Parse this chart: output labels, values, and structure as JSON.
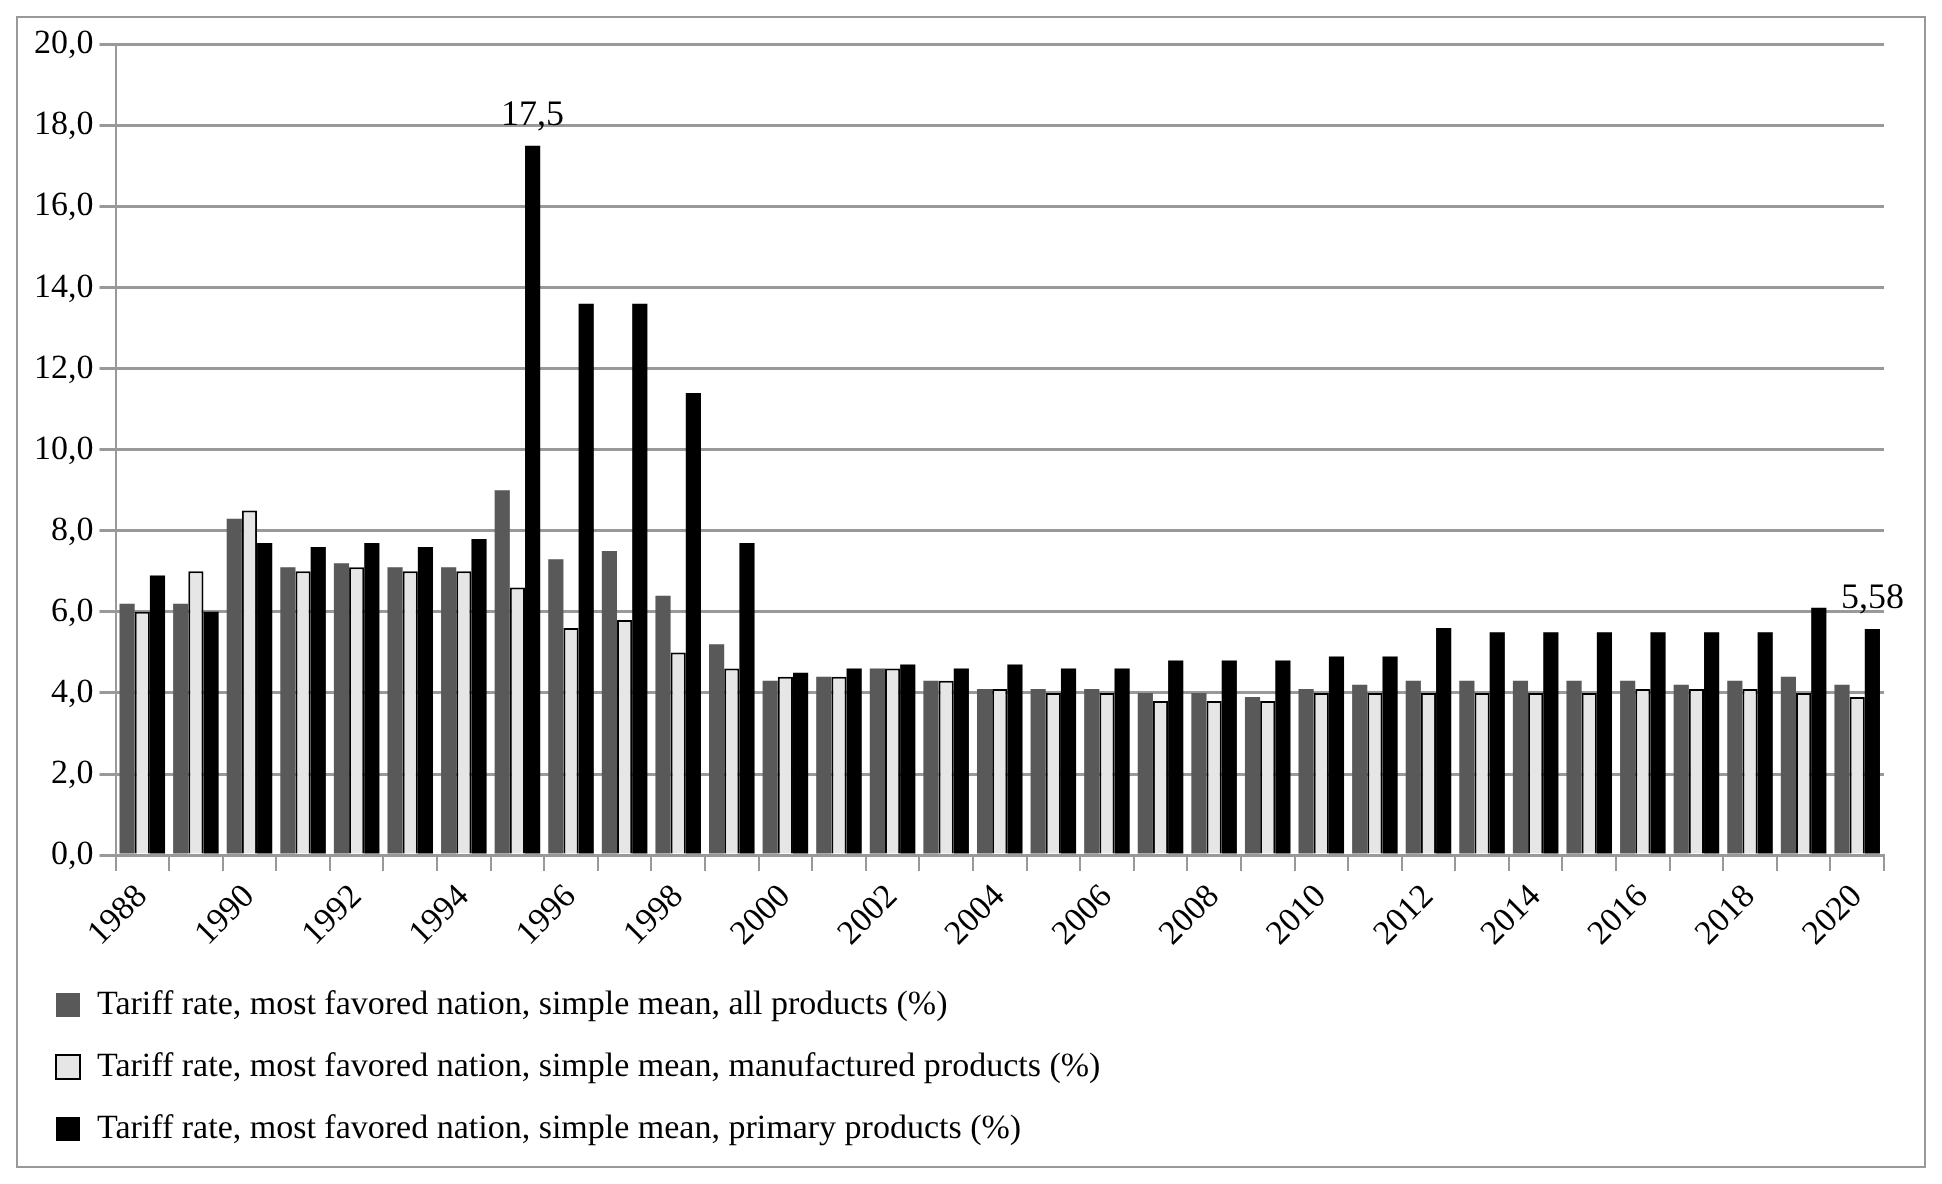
{
  "chart_data": {
    "type": "bar",
    "categories": [
      "1988",
      null,
      "1990",
      null,
      "1992",
      null,
      "1994",
      null,
      "1996",
      null,
      "1998",
      null,
      "2000",
      null,
      "2002",
      null,
      "2004",
      null,
      "2006",
      null,
      "2008",
      null,
      "2010",
      null,
      "2012",
      null,
      "2014",
      null,
      "2016",
      null,
      "2018",
      null,
      "2020"
    ],
    "series": [
      {
        "name": "Tariff rate, most favored nation, simple mean, all products (%)",
        "color": "#595959",
        "values": [
          6.2,
          6.2,
          8.3,
          7.1,
          7.2,
          7.1,
          7.1,
          9.0,
          7.3,
          7.5,
          6.4,
          5.2,
          4.3,
          4.4,
          4.6,
          4.3,
          4.1,
          4.1,
          4.1,
          4.0,
          4.0,
          3.9,
          4.1,
          4.2,
          4.3,
          4.3,
          4.3,
          4.3,
          4.3,
          4.2,
          4.3,
          4.4,
          4.2
        ]
      },
      {
        "name": "Tariff rate, most favored nation, simple mean, manufactured products (%)",
        "color": "#e6e6e6",
        "values": [
          6.0,
          7.0,
          8.5,
          7.0,
          7.1,
          7.0,
          7.0,
          6.6,
          5.6,
          5.8,
          5.0,
          4.6,
          4.4,
          4.4,
          4.6,
          4.3,
          4.1,
          4.0,
          4.0,
          3.8,
          3.8,
          3.8,
          4.0,
          4.0,
          4.0,
          4.0,
          4.0,
          4.0,
          4.1,
          4.1,
          4.1,
          4.0,
          3.9
        ]
      },
      {
        "name": "Tariff rate, most favored nation, simple mean, primary products (%)",
        "color": "#000000",
        "values": [
          6.9,
          6.0,
          7.7,
          7.6,
          7.7,
          7.6,
          7.8,
          17.5,
          13.6,
          13.6,
          11.4,
          7.7,
          4.5,
          4.6,
          4.7,
          4.6,
          4.7,
          4.6,
          4.6,
          4.8,
          4.8,
          4.8,
          4.9,
          4.9,
          5.6,
          5.5,
          5.5,
          5.5,
          5.5,
          5.5,
          5.5,
          6.1,
          5.58
        ],
        "value_labels": [
          null,
          null,
          null,
          null,
          null,
          null,
          null,
          "17,5",
          null,
          null,
          null,
          null,
          null,
          null,
          null,
          null,
          null,
          null,
          null,
          null,
          null,
          null,
          null,
          null,
          null,
          null,
          null,
          null,
          null,
          null,
          null,
          null,
          "5,58"
        ]
      }
    ],
    "ylim": [
      0,
      20
    ],
    "yticks": [
      {
        "value": 0,
        "label": "0,0"
      },
      {
        "value": 2,
        "label": "2,0"
      },
      {
        "value": 4,
        "label": "4,0"
      },
      {
        "value": 6,
        "label": "6,0"
      },
      {
        "value": 8,
        "label": "8,0"
      },
      {
        "value": 10,
        "label": "10,0"
      },
      {
        "value": 12,
        "label": "12,0"
      },
      {
        "value": 14,
        "label": "14,0"
      },
      {
        "value": 16,
        "label": "16,0"
      },
      {
        "value": 18,
        "label": "18,0"
      },
      {
        "value": 20,
        "label": "20,0"
      }
    ],
    "grid": "y",
    "legend": "bottom"
  }
}
